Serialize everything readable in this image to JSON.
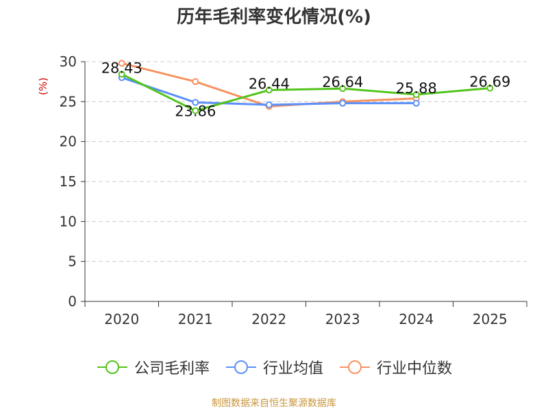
{
  "chart_data": {
    "type": "line",
    "title": "历年毛利率变化情况(%)",
    "ylabel": "(%)",
    "xlabel": "",
    "categories": [
      "2020",
      "2021",
      "2022",
      "2023",
      "2024",
      "2025"
    ],
    "ylim": [
      0,
      30
    ],
    "yticks": [
      0,
      5,
      10,
      15,
      20,
      25,
      30
    ],
    "grid": true,
    "legend": "bottom",
    "series": [
      {
        "name": "公司毛利率",
        "color": "#52c41a",
        "values": [
          28.43,
          23.86,
          26.44,
          26.64,
          25.88,
          26.69
        ],
        "labels": [
          "28.43",
          "23.86",
          "26.44",
          "26.64",
          "25.88",
          "26.69"
        ]
      },
      {
        "name": "行业均值",
        "color": "#5b8ff9",
        "values": [
          28.0,
          24.9,
          24.6,
          24.8,
          24.8,
          null
        ],
        "labels": []
      },
      {
        "name": "行业中位数",
        "color": "#f6925f",
        "values": [
          29.8,
          27.5,
          24.4,
          25.0,
          25.4,
          null
        ],
        "labels": []
      }
    ]
  },
  "source": "制图数据来自恒生聚源数据库",
  "colors": {
    "ylabel": "#cc0000",
    "axis": "#333333",
    "grid": "#cccccc"
  }
}
